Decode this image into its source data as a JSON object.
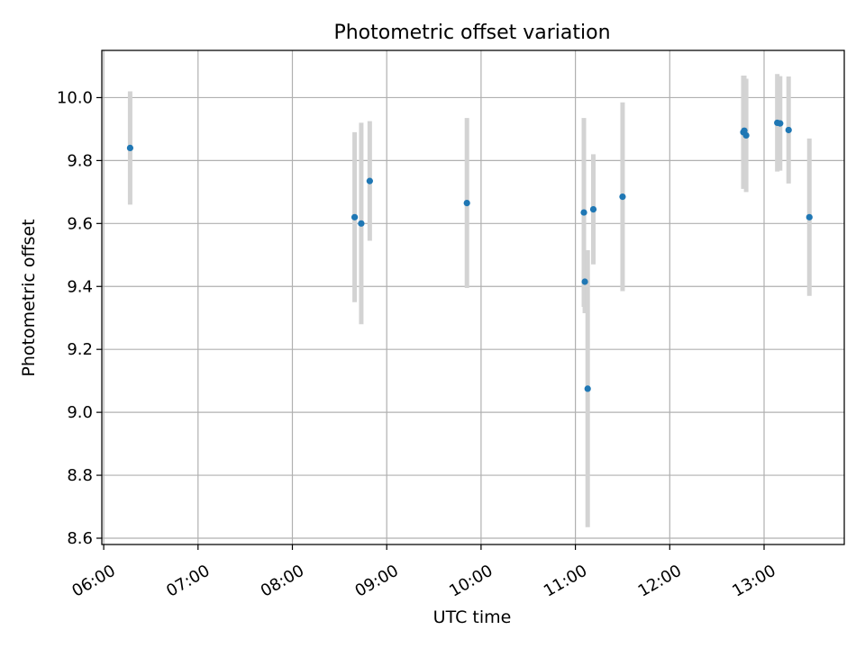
{
  "chart_data": {
    "type": "scatter",
    "title": "Photometric offset variation",
    "xlabel": "UTC time",
    "ylabel": "Photometric offset",
    "xlim_hours": [
      5.98,
      13.85
    ],
    "ylim": [
      8.58,
      10.15
    ],
    "grid": true,
    "x_ticks": [
      {
        "hour": 6,
        "label": "06:00"
      },
      {
        "hour": 7,
        "label": "07:00"
      },
      {
        "hour": 8,
        "label": "08:00"
      },
      {
        "hour": 9,
        "label": "09:00"
      },
      {
        "hour": 10,
        "label": "10:00"
      },
      {
        "hour": 11,
        "label": "11:00"
      },
      {
        "hour": 12,
        "label": "12:00"
      },
      {
        "hour": 13,
        "label": "13:00"
      }
    ],
    "y_ticks": [
      {
        "value": 8.6,
        "label": "8.6"
      },
      {
        "value": 8.8,
        "label": "8.8"
      },
      {
        "value": 9.0,
        "label": "9.0"
      },
      {
        "value": 9.2,
        "label": "9.2"
      },
      {
        "value": 9.4,
        "label": "9.4"
      },
      {
        "value": 9.6,
        "label": "9.6"
      },
      {
        "value": 9.8,
        "label": "9.8"
      },
      {
        "value": 10.0,
        "label": "10.0"
      }
    ],
    "series": [
      {
        "name": "offset",
        "marker_color": "#1f77b4",
        "errorbar_color": "#d3d3d3",
        "points": [
          {
            "time": "06:17",
            "x": 6.28,
            "y": 9.84,
            "yerr": 0.18
          },
          {
            "time": "08:39",
            "x": 8.66,
            "y": 9.62,
            "yerr": 0.27
          },
          {
            "time": "08:44",
            "x": 8.73,
            "y": 9.6,
            "yerr": 0.32
          },
          {
            "time": "08:49",
            "x": 8.82,
            "y": 9.735,
            "yerr": 0.19
          },
          {
            "time": "09:51",
            "x": 9.85,
            "y": 9.665,
            "yerr": 0.27
          },
          {
            "time": "11:06",
            "x": 11.09,
            "y": 9.635,
            "yerr": 0.3
          },
          {
            "time": "11:06",
            "x": 11.1,
            "y": 9.415,
            "yerr": 0.1
          },
          {
            "time": "11:08",
            "x": 11.13,
            "y": 9.075,
            "yerr": 0.44
          },
          {
            "time": "11:12",
            "x": 11.19,
            "y": 9.645,
            "yerr": 0.175
          },
          {
            "time": "11:30",
            "x": 11.5,
            "y": 9.685,
            "yerr": 0.3
          },
          {
            "time": "12:47",
            "x": 12.78,
            "y": 9.89,
            "yerr": 0.18
          },
          {
            "time": "12:47",
            "x": 12.79,
            "y": 9.895,
            "yerr": 0.175
          },
          {
            "time": "12:49",
            "x": 12.81,
            "y": 9.88,
            "yerr": 0.18
          },
          {
            "time": "13:09",
            "x": 13.14,
            "y": 9.92,
            "yerr": 0.155
          },
          {
            "time": "13:10",
            "x": 13.17,
            "y": 9.918,
            "yerr": 0.15
          },
          {
            "time": "13:15",
            "x": 13.26,
            "y": 9.897,
            "yerr": 0.17
          },
          {
            "time": "13:29",
            "x": 13.48,
            "y": 9.62,
            "yerr": 0.25
          }
        ]
      }
    ]
  },
  "style": {
    "background": "#ffffff",
    "axes_color": "#000000",
    "grid_color": "#b0b0b0"
  }
}
